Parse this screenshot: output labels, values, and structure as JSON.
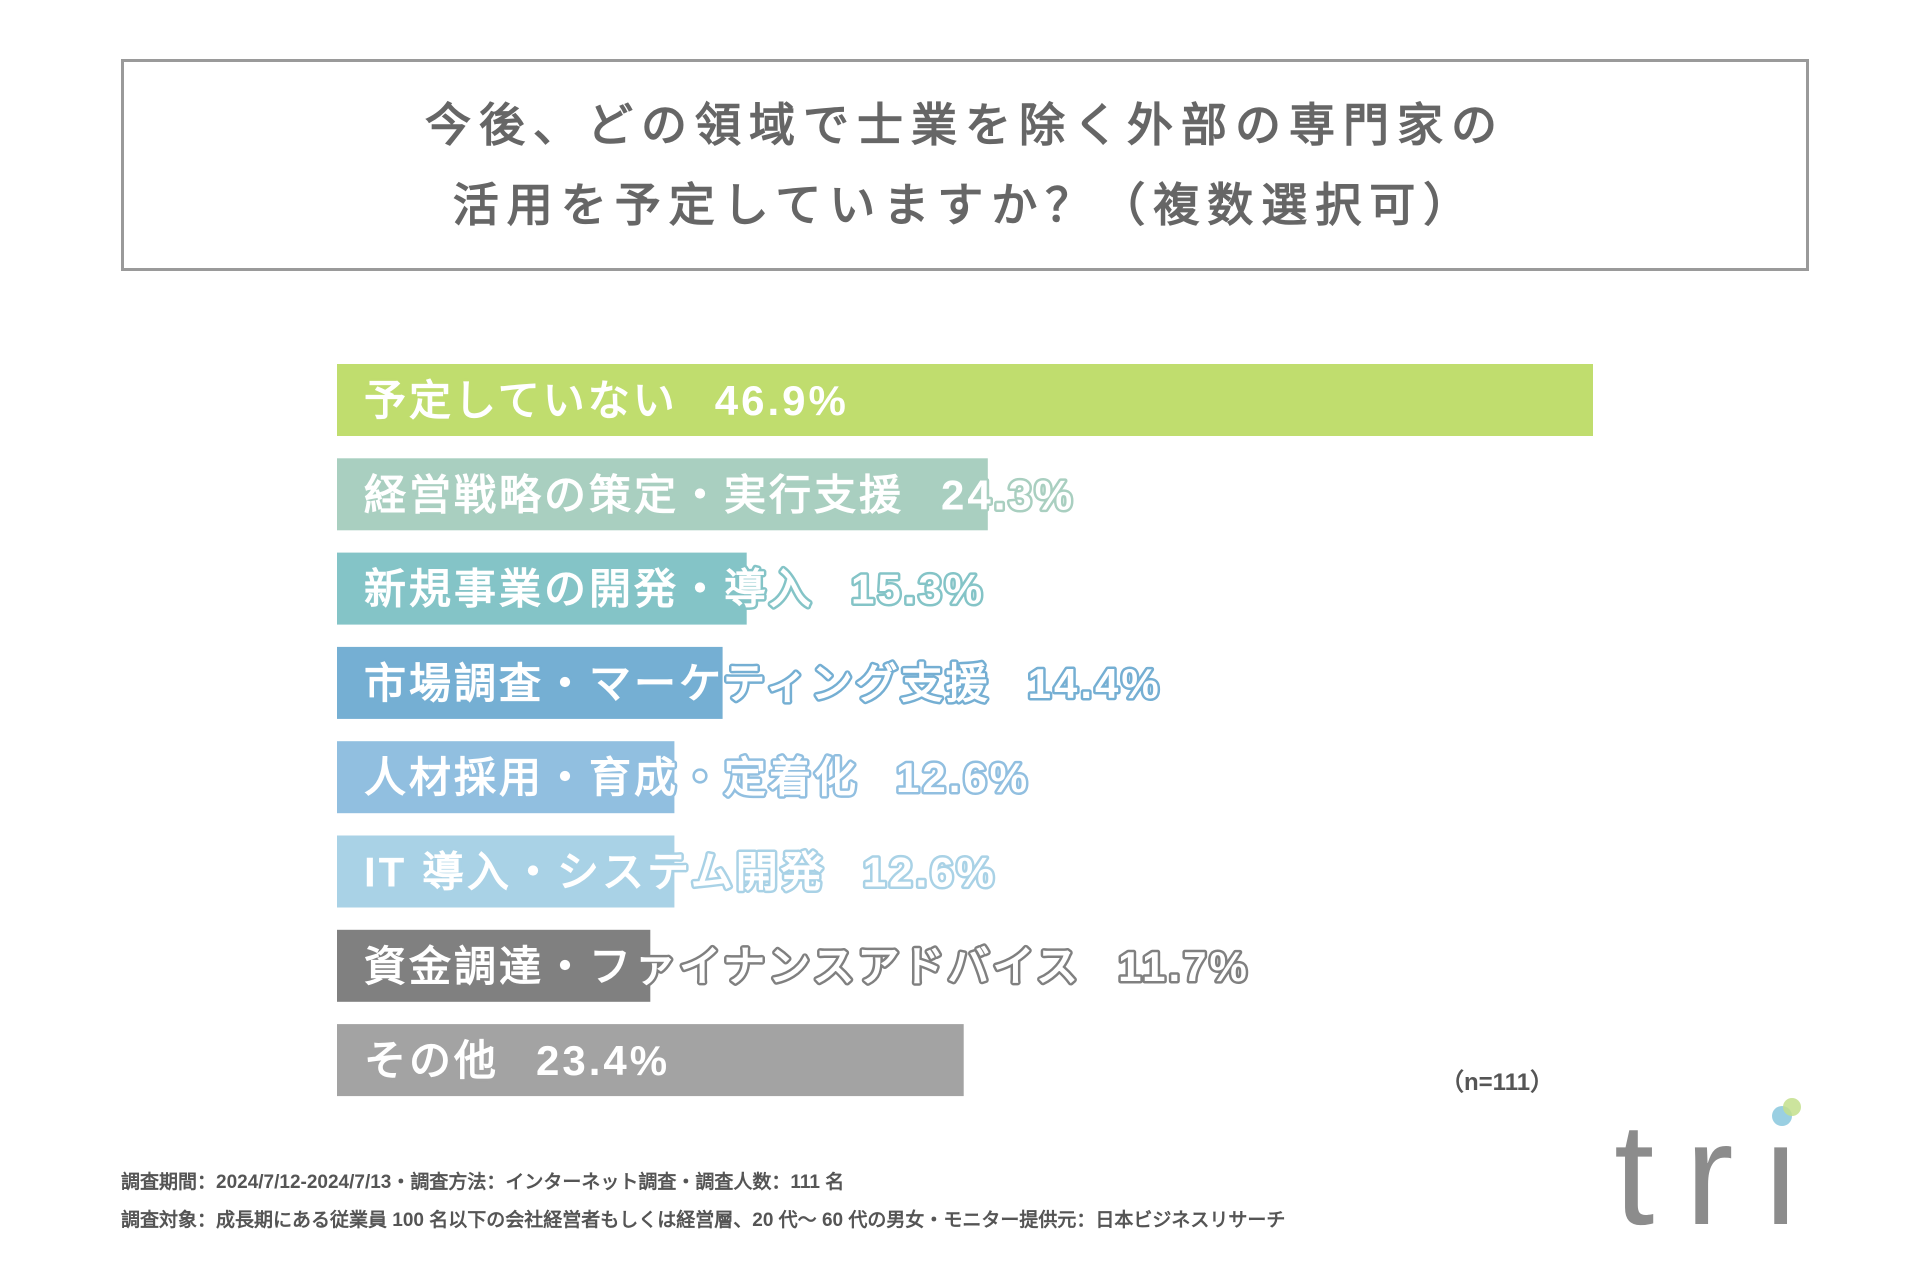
{
  "chart_data": {
    "type": "bar",
    "orientation": "horizontal",
    "title_lines": [
      "今後、どの領域で士業を除く外部の専門家の",
      "活用を予定していますか？（複数選択可）"
    ],
    "categories": [
      "予定していない",
      "経営戦略の策定・実行支援",
      "新規事業の開発・導入",
      "市場調査・マーケティング支援",
      "人材採用・育成・定着化",
      "IT 導入・システム開発",
      "資金調達・ファイナンスアドバイス",
      "その他"
    ],
    "values": [
      46.9,
      24.3,
      15.3,
      14.4,
      12.6,
      12.6,
      11.7,
      23.4
    ],
    "value_labels": [
      "46.9%",
      "24.3%",
      "15.3%",
      "14.4%",
      "12.6%",
      "12.6%",
      "11.7%",
      "23.4%"
    ],
    "colors": [
      "#c0dd6e",
      "#a9cfc0",
      "#84c4c7",
      "#75afd3",
      "#91bfe0",
      "#a9d2e6",
      "#808080",
      "#a3a3a3"
    ],
    "sample_size_label": "（n=111）",
    "grid": false,
    "legend": "none"
  },
  "footer": {
    "line1": "調査期間：2024/7/12-2024/7/13・調査方法：インターネット調査・調査人数：111 名",
    "line2": "調査対象：成長期にある従業員 100 名以下の会社経営者もしくは経営層、20 代〜 60 代の男女・モニター提供元：日本ビジネスリサーチ"
  },
  "logo": {
    "text": "tri",
    "text_color": "#8c8c8c",
    "dot_colors": [
      "#8fcadf",
      "#c3df8c"
    ]
  }
}
